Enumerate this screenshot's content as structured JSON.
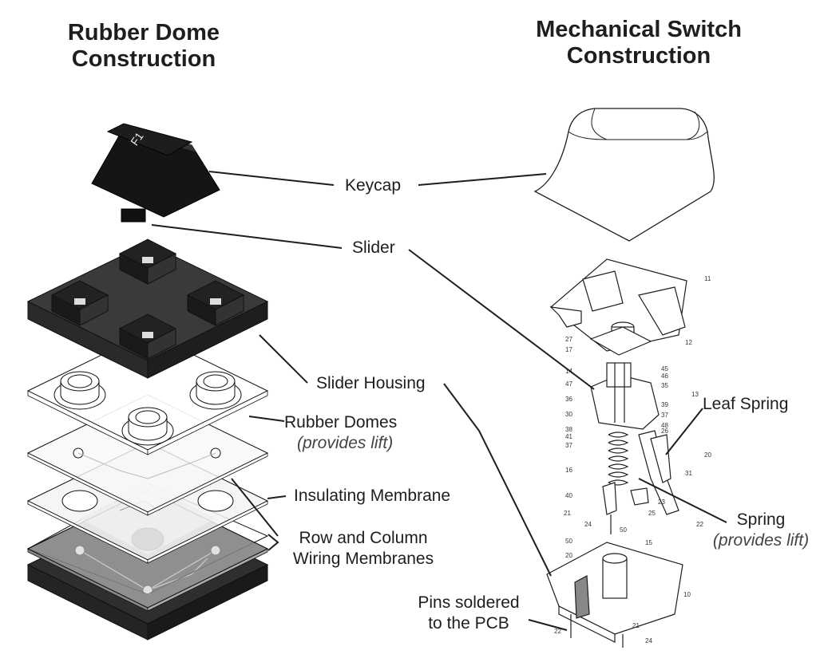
{
  "titles": {
    "left": [
      "Rubber Dome",
      "Construction"
    ],
    "right": [
      "Mechanical Switch",
      "Construction"
    ]
  },
  "labels": {
    "keycap": "Keycap",
    "slider": "Slider",
    "slider_housing": "Slider Housing",
    "rubber_domes": "Rubber Domes",
    "rubber_domes_note": "(provides lift)",
    "insulating_membrane": "Insulating Membrane",
    "wiring_membranes": [
      "Row and Column",
      "Wiring Membranes"
    ],
    "leaf_spring": "Leaf Spring",
    "spring": "Spring",
    "spring_note": "(provides lift)",
    "pins": [
      "Pins soldered",
      "to the PCB"
    ]
  },
  "keycap_legend": "F1",
  "patent_numbers": [
    "11",
    "12",
    "27",
    "17",
    "14",
    "45",
    "46",
    "47",
    "35",
    "13",
    "36",
    "39",
    "30",
    "37",
    "38",
    "48",
    "41",
    "26",
    "37",
    "16",
    "20",
    "31",
    "40",
    "23",
    "21",
    "25",
    "22",
    "24",
    "50",
    "50",
    "15",
    "20",
    "10",
    "21",
    "22",
    "24"
  ],
  "colors": {
    "line": "#1e1e1e",
    "keycap_dark": "#151515",
    "housing_dark": "#3a3a3a",
    "pcb": "#2e2e2e"
  }
}
